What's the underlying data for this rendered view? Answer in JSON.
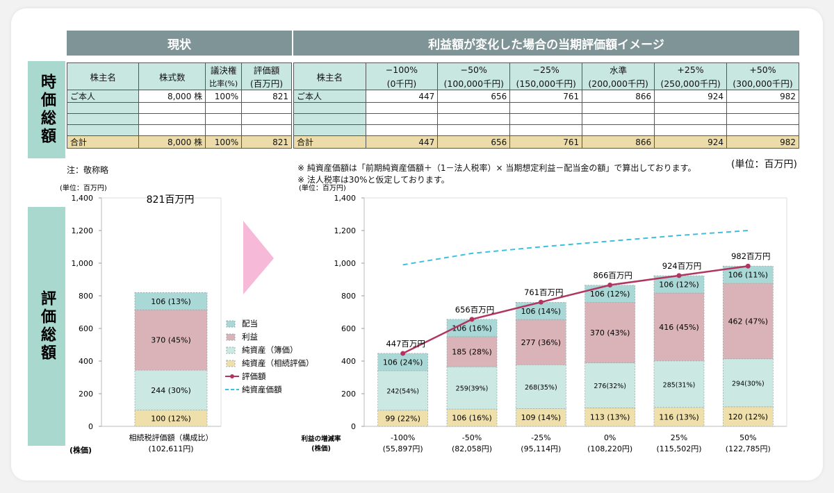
{
  "side_labels": {
    "top": "時価総額",
    "bottom": "評価総額"
  },
  "headers": {
    "current": "現状",
    "scenarios": "利益額が変化した場合の当期評価額イメージ"
  },
  "left_table": {
    "headers": {
      "shareholder": "株主名",
      "shares": "株式数",
      "vote_ratio_1": "議決権",
      "vote_ratio_2": "比率(%)",
      "valuation_1": "評価額",
      "valuation_2": "(百万円)"
    },
    "rows": [
      {
        "name": "ご本人",
        "shares": "8,000 株",
        "ratio": "100%",
        "value": "821"
      },
      {
        "name": "",
        "shares": "",
        "ratio": "",
        "value": ""
      },
      {
        "name": "",
        "shares": "",
        "ratio": "",
        "value": ""
      },
      {
        "name": "",
        "shares": "",
        "ratio": "",
        "value": ""
      }
    ],
    "total": {
      "name": "合計",
      "shares": "8,000 株",
      "ratio": "100%",
      "value": "821"
    }
  },
  "right_table": {
    "header_name": "株主名",
    "columns": [
      {
        "top": "−100%",
        "bottom": "(0千円)"
      },
      {
        "top": "−50%",
        "bottom": "(100,000千円)"
      },
      {
        "top": "−25%",
        "bottom": "(150,000千円)"
      },
      {
        "top": "水準",
        "bottom": "(200,000千円)"
      },
      {
        "top": "+25%",
        "bottom": "(250,000千円)"
      },
      {
        "top": "+50%",
        "bottom": "(300,000千円)"
      }
    ],
    "rows": [
      {
        "name": "ご本人",
        "values": [
          "447",
          "656",
          "761",
          "866",
          "924",
          "982"
        ]
      },
      {
        "name": "",
        "values": [
          "",
          "",
          "",
          "",
          "",
          ""
        ]
      },
      {
        "name": "",
        "values": [
          "",
          "",
          "",
          "",
          "",
          ""
        ]
      },
      {
        "name": "",
        "values": [
          "",
          "",
          "",
          "",
          "",
          ""
        ]
      }
    ],
    "total": {
      "name": "合計",
      "values": [
        "447",
        "656",
        "761",
        "866",
        "924",
        "982"
      ]
    }
  },
  "notes": {
    "honorific": "注：敬称略",
    "unit_table": "(単位：百万円)",
    "note1": "※  純資産価額は「前期純資産価額＋（1－法人税率）× 当期想定利益－配当金の額」で算出しております。",
    "note2": "※  法人税率は30%と仮定しております。"
  },
  "colors": {
    "dividend": "#a9d8d6",
    "profit": "#d9b3b7",
    "net_book": "#cbe8e2",
    "net_inherit": "#efdfaa",
    "line_valuation": "#b1365f",
    "line_net": "#3cc0e0",
    "arrow": "#f6b9d8"
  },
  "chart_data": [
    {
      "type": "bar",
      "stacked": true,
      "unit_label": "(単位：百万円)",
      "title": "821百万円",
      "ylim": [
        0,
        1400
      ],
      "yticks": [
        0,
        200,
        400,
        600,
        800,
        1000,
        1200,
        1400
      ],
      "xlabel": "(株価)",
      "categories": [
        "相続税評価額（構成比）"
      ],
      "category_sub": [
        "(102,611円)"
      ],
      "series": [
        {
          "name": "純資産（相続評価）",
          "values": [
            100
          ],
          "labels": [
            "100 (12%)"
          ]
        },
        {
          "name": "純資産（簿価）",
          "values": [
            244
          ],
          "labels": [
            "244 (30%)"
          ]
        },
        {
          "name": "利益",
          "values": [
            370
          ],
          "labels": [
            "370 (45%)"
          ]
        },
        {
          "name": "配当",
          "values": [
            106
          ],
          "labels": [
            "106 (13%)"
          ]
        }
      ],
      "legend": [
        "配当",
        "利益",
        "純資産（簿価）",
        "純資産（相続評価）",
        "評価額",
        "純資産価額"
      ]
    },
    {
      "type": "bar",
      "stacked": true,
      "unit_label": "(単位：百万円)",
      "ylim": [
        0,
        1400
      ],
      "yticks": [
        0,
        200,
        400,
        600,
        800,
        1000,
        1200,
        1400
      ],
      "xlabel_1": "利益の増減率",
      "xlabel_2": "(株価)",
      "categories": [
        "-100%",
        "-50%",
        "-25%",
        "0%",
        "25%",
        "50%"
      ],
      "category_sub": [
        "(55,897円)",
        "(82,058円)",
        "(95,114円)",
        "(108,220円)",
        "(115,502円)",
        "(122,785円)"
      ],
      "series": [
        {
          "name": "純資産（相続評価）",
          "values": [
            99,
            106,
            109,
            113,
            116,
            120
          ],
          "labels": [
            "99 (22%)",
            "106 (16%)",
            "109 (14%)",
            "113 (13%)",
            "116 (13%)",
            "120 (12%)"
          ]
        },
        {
          "name": "純資産（簿価）",
          "values": [
            242,
            259,
            268,
            276,
            285,
            294
          ],
          "labels": [
            "242(54%)",
            "259(39%)",
            "268(35%)",
            "276(32%)",
            "285(31%)",
            "294(30%)"
          ]
        },
        {
          "name": "利益",
          "values": [
            0,
            185,
            277,
            370,
            416,
            462
          ],
          "labels": [
            "",
            "185 (28%)",
            "277 (36%)",
            "370 (43%)",
            "416 (45%)",
            "462 (47%)"
          ]
        },
        {
          "name": "配当",
          "values": [
            106,
            106,
            106,
            106,
            106,
            106
          ],
          "labels": [
            "106 (24%)",
            "106 (16%)",
            "106 (14%)",
            "106 (12%)",
            "106 (12%)",
            "106 (11%)"
          ]
        }
      ],
      "lines": [
        {
          "name": "評価額",
          "values": [
            447,
            656,
            761,
            866,
            924,
            982
          ],
          "labels": [
            "447百万円",
            "656百万円",
            "761百万円",
            "866百万円",
            "924百万円",
            "982百万円"
          ]
        },
        {
          "name": "純資産価額",
          "values": [
            990,
            1060,
            1100,
            1135,
            1170,
            1200
          ]
        }
      ]
    }
  ]
}
